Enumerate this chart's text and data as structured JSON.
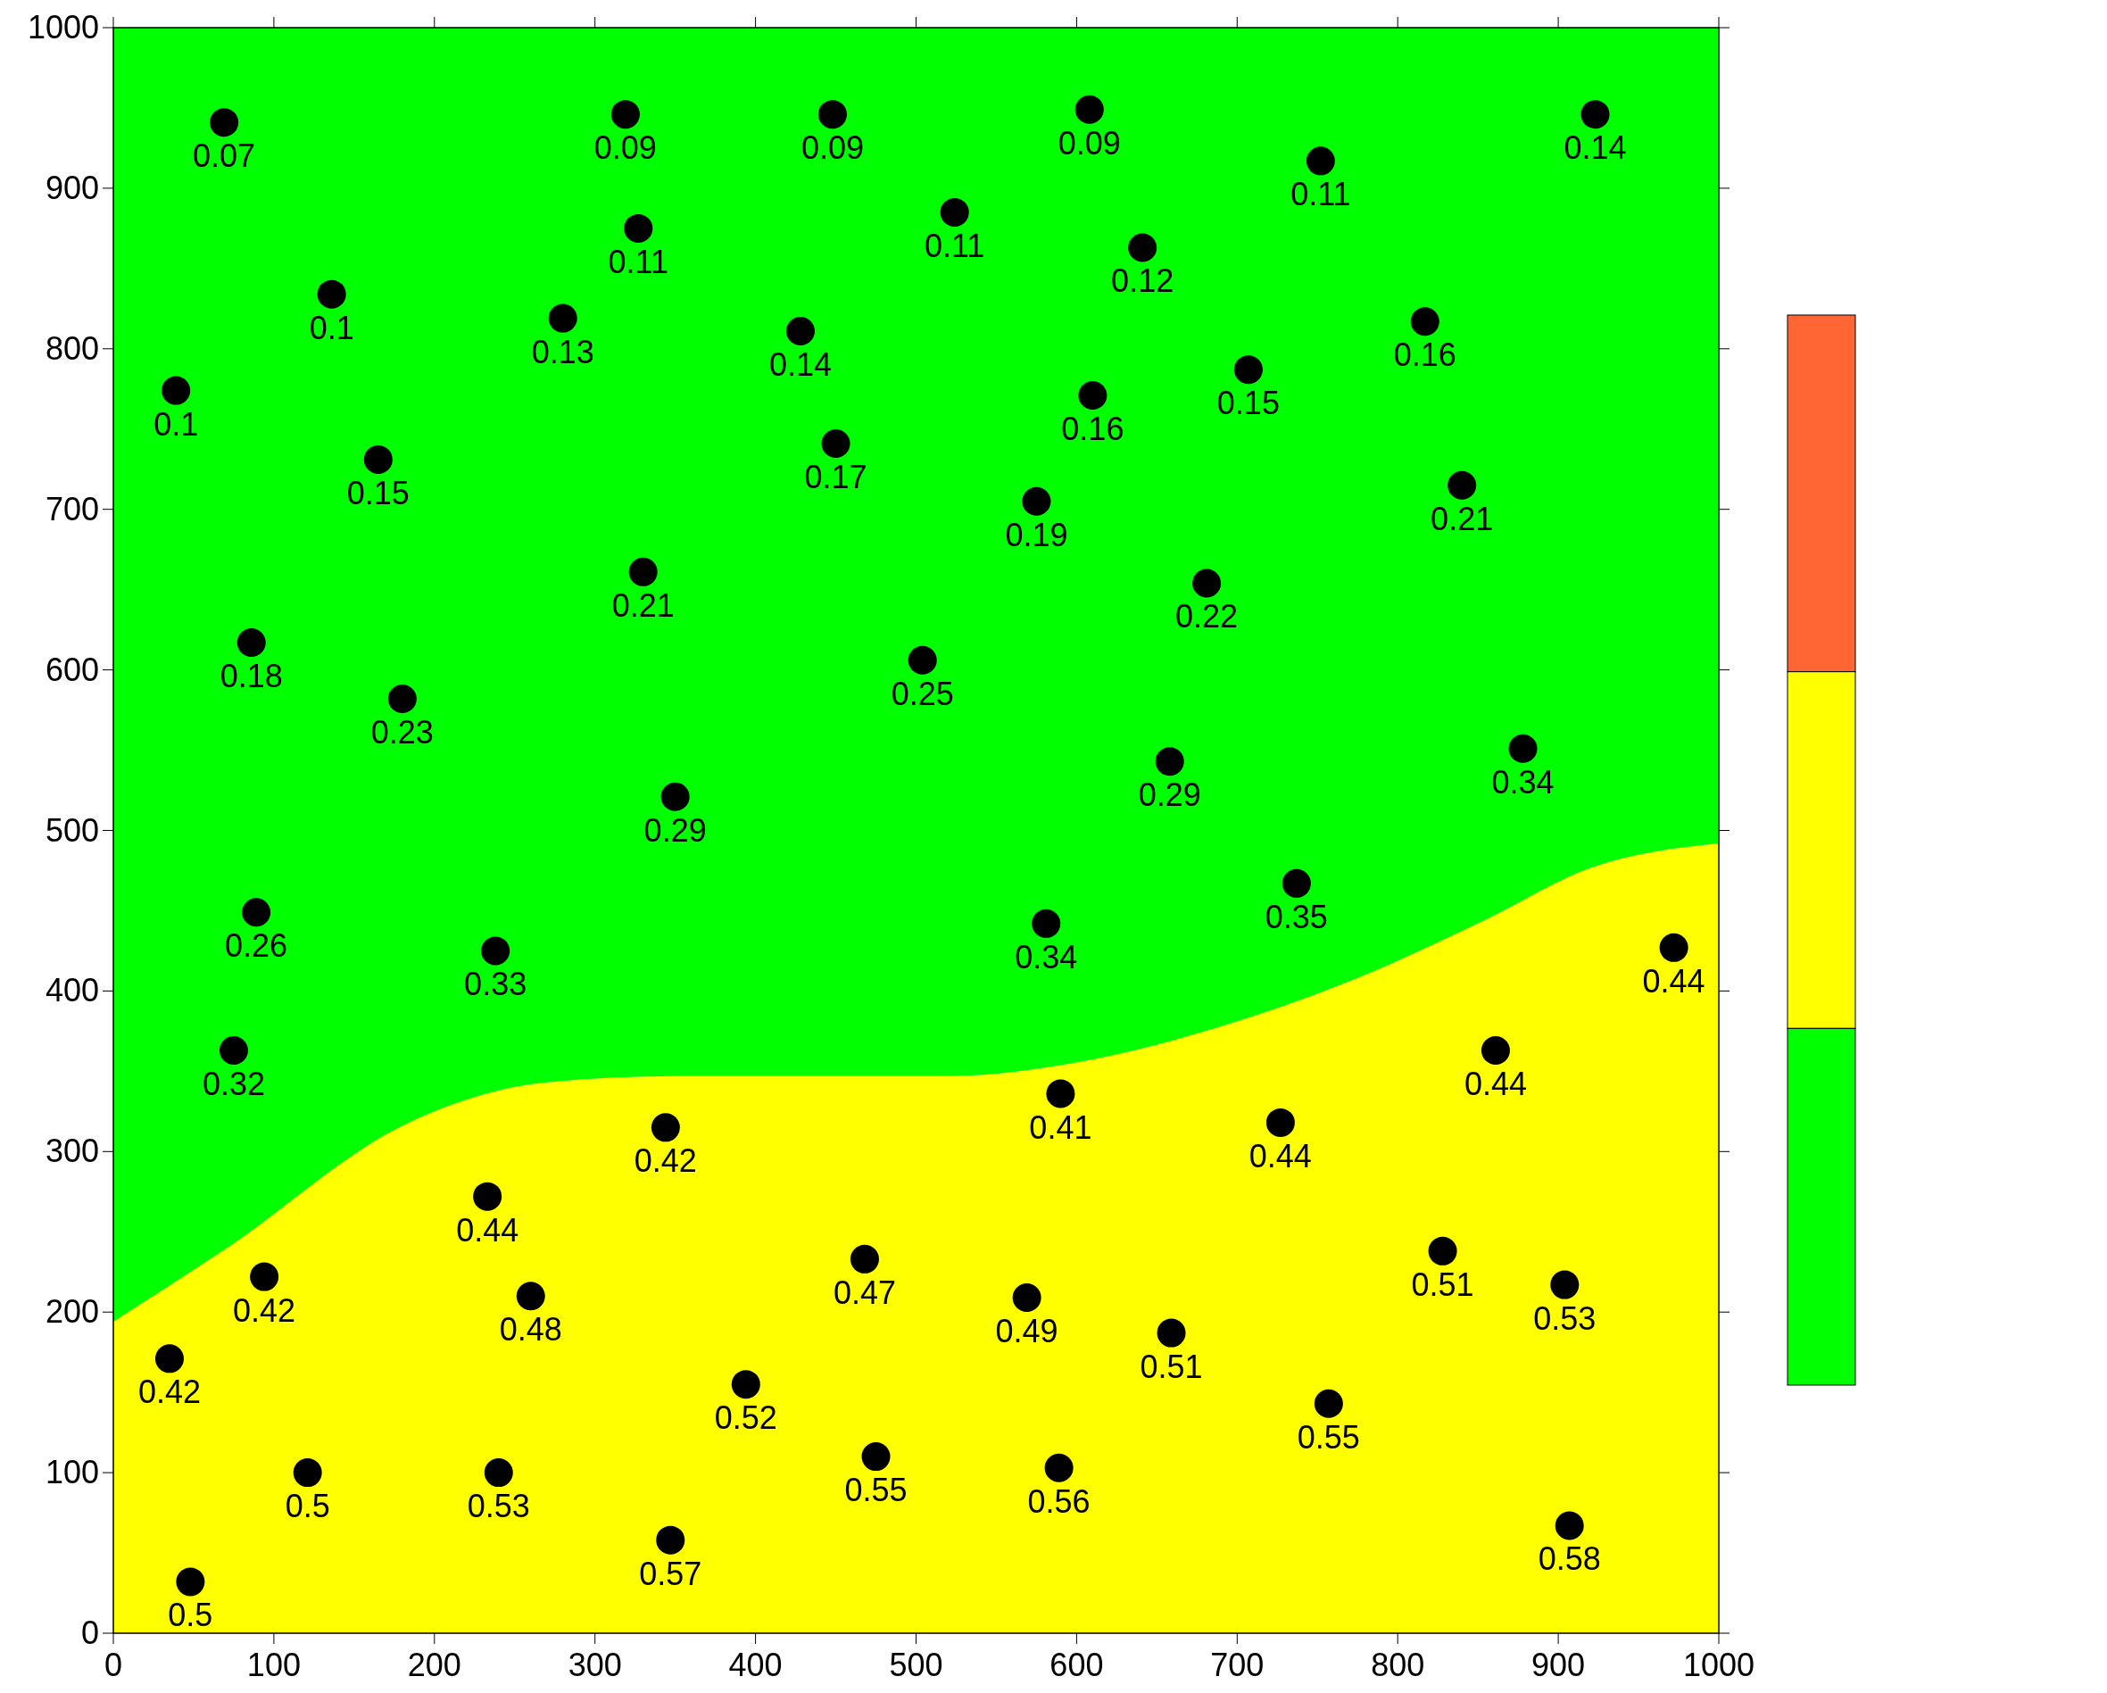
{
  "chart_data": {
    "type": "scatter",
    "stacked": true,
    "xlim": [
      0,
      1000
    ],
    "ylim": [
      0,
      1000
    ],
    "xticks": [
      0,
      100,
      200,
      300,
      400,
      500,
      600,
      700,
      800,
      900,
      1000
    ],
    "yticks": [
      0,
      100,
      200,
      300,
      400,
      500,
      600,
      700,
      800,
      900,
      1000
    ],
    "grid": false,
    "series": [
      {
        "type": "area",
        "color": "#ffff00",
        "x": [
          0,
          68,
          184,
          269,
          352,
          520,
          603,
          687,
          770,
          854,
          921,
          1000
        ],
        "values": [
          194,
          238,
          318,
          343,
          347,
          347,
          356,
          377,
          406,
          444,
          477,
          492
        ]
      },
      {
        "type": "area",
        "color": "#00ff00",
        "x": [
          0,
          68,
          184,
          269,
          352,
          520,
          603,
          687,
          770,
          854,
          921,
          1000
        ],
        "values": [
          806,
          762,
          682,
          657,
          653,
          653,
          644,
          623,
          594,
          556,
          523,
          508
        ]
      },
      {
        "color": "#000000",
        "marker": "circle",
        "x": [
          69,
          319,
          448,
          608,
          923,
          752,
          327,
          524,
          641,
          136,
          280,
          428,
          817,
          39,
          707,
          610,
          165,
          450,
          575,
          840,
          330,
          681,
          86,
          504,
          180,
          658,
          878,
          350,
          89,
          238,
          581,
          737,
          972,
          75,
          861,
          590,
          344,
          727,
          233,
          828,
          94,
          904,
          468,
          260,
          569,
          659,
          35,
          394,
          757,
          121,
          240,
          475,
          589,
          347,
          907,
          48
        ],
        "values": [
          941,
          946,
          946,
          949,
          946,
          917,
          875,
          885,
          863,
          834,
          819,
          811,
          817,
          774,
          787,
          771,
          731,
          741,
          705,
          715,
          661,
          654,
          617,
          606,
          582,
          543,
          551,
          521,
          449,
          425,
          442,
          467,
          427,
          363,
          363,
          336,
          315,
          318,
          272,
          238,
          222,
          217,
          233,
          210,
          209,
          187,
          171,
          155,
          143,
          100,
          100,
          110,
          103,
          58,
          67,
          32
        ]
      }
    ],
    "annotations": [
      {
        "text": "0.07",
        "x": 69,
        "y": 941
      },
      {
        "text": "0.09",
        "x": 319,
        "y": 946
      },
      {
        "text": "0.09",
        "x": 448,
        "y": 946
      },
      {
        "text": "0.09",
        "x": 608,
        "y": 949
      },
      {
        "text": "0.14",
        "x": 923,
        "y": 946
      },
      {
        "text": "0.11",
        "x": 752,
        "y": 917
      },
      {
        "text": "0.11",
        "x": 327,
        "y": 875
      },
      {
        "text": "0.11",
        "x": 524,
        "y": 885
      },
      {
        "text": "0.12",
        "x": 641,
        "y": 863
      },
      {
        "text": "0.1",
        "x": 136,
        "y": 834
      },
      {
        "text": "0.13",
        "x": 280,
        "y": 819
      },
      {
        "text": "0.14",
        "x": 428,
        "y": 811
      },
      {
        "text": "0.16",
        "x": 817,
        "y": 817
      },
      {
        "text": "0.1",
        "x": 39,
        "y": 774
      },
      {
        "text": "0.15",
        "x": 707,
        "y": 787
      },
      {
        "text": "0.16",
        "x": 610,
        "y": 771
      },
      {
        "text": "0.15",
        "x": 165,
        "y": 731
      },
      {
        "text": "0.17",
        "x": 450,
        "y": 741
      },
      {
        "text": "0.19",
        "x": 575,
        "y": 705
      },
      {
        "text": "0.21",
        "x": 840,
        "y": 715
      },
      {
        "text": "0.21",
        "x": 330,
        "y": 661
      },
      {
        "text": "0.22",
        "x": 681,
        "y": 654
      },
      {
        "text": "0.18",
        "x": 86,
        "y": 617
      },
      {
        "text": "0.25",
        "x": 504,
        "y": 606
      },
      {
        "text": "0.23",
        "x": 180,
        "y": 582
      },
      {
        "text": "0.29",
        "x": 658,
        "y": 543
      },
      {
        "text": "0.34",
        "x": 878,
        "y": 551
      },
      {
        "text": "0.29",
        "x": 350,
        "y": 521
      },
      {
        "text": "0.26",
        "x": 89,
        "y": 449
      },
      {
        "text": "0.33",
        "x": 238,
        "y": 425
      },
      {
        "text": "0.34",
        "x": 581,
        "y": 442
      },
      {
        "text": "0.35",
        "x": 737,
        "y": 467
      },
      {
        "text": "0.44",
        "x": 972,
        "y": 427
      },
      {
        "text": "0.32",
        "x": 75,
        "y": 363
      },
      {
        "text": "0.44",
        "x": 861,
        "y": 363
      },
      {
        "text": "0.41",
        "x": 590,
        "y": 336
      },
      {
        "text": "0.42",
        "x": 344,
        "y": 315
      },
      {
        "text": "0.44",
        "x": 727,
        "y": 318
      },
      {
        "text": "0.44",
        "x": 233,
        "y": 272
      },
      {
        "text": "0.51",
        "x": 828,
        "y": 238
      },
      {
        "text": "0.42",
        "x": 94,
        "y": 222
      },
      {
        "text": "0.53",
        "x": 904,
        "y": 217
      },
      {
        "text": "0.47",
        "x": 468,
        "y": 233
      },
      {
        "text": "0.48",
        "x": 260,
        "y": 210
      },
      {
        "text": "0.49",
        "x": 569,
        "y": 209
      },
      {
        "text": "0.51",
        "x": 659,
        "y": 187
      },
      {
        "text": "0.42",
        "x": 35,
        "y": 171
      },
      {
        "text": "0.52",
        "x": 394,
        "y": 155
      },
      {
        "text": "0.55",
        "x": 757,
        "y": 143
      },
      {
        "text": "0.5",
        "x": 121,
        "y": 100
      },
      {
        "text": "0.53",
        "x": 240,
        "y": 100
      },
      {
        "text": "0.55",
        "x": 475,
        "y": 110
      },
      {
        "text": "0.56",
        "x": 589,
        "y": 103
      },
      {
        "text": "0.57",
        "x": 347,
        "y": 58
      },
      {
        "text": "0.58",
        "x": 907,
        "y": 67
      },
      {
        "text": "0.5",
        "x": 48,
        "y": 32
      }
    ]
  }
}
